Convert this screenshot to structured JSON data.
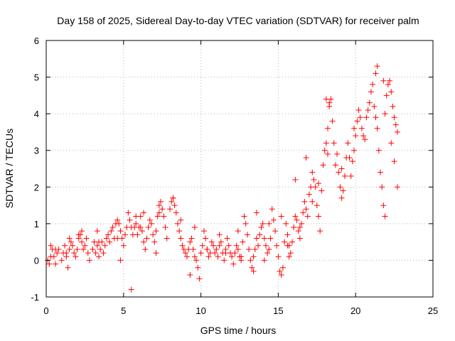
{
  "chart_data": {
    "type": "scatter",
    "title": "Day 158 of 2025, Sidereal Day-to-day VTEC variation (SDTVAR) for receiver palm",
    "xlabel": "GPS time / hours",
    "ylabel": "SDTVAR / TECUs",
    "xlim": [
      0,
      25
    ],
    "ylim": [
      -1,
      6
    ],
    "x_ticks": [
      0,
      5,
      10,
      15,
      20,
      25
    ],
    "y_ticks": [
      -1,
      0,
      1,
      2,
      3,
      4,
      5,
      6
    ],
    "grid": true,
    "marker": "+",
    "series": [
      {
        "name": "SDTVAR",
        "color": "#ff0000",
        "x": [
          0.1,
          0.2,
          0.3,
          0.4,
          0.5,
          0.6,
          0.7,
          0.8,
          1.0,
          1.1,
          1.2,
          1.3,
          1.4,
          1.5,
          1.6,
          1.7,
          1.8,
          1.9,
          2.0,
          2.1,
          2.2,
          2.3,
          2.4,
          2.5,
          2.6,
          2.7,
          2.8,
          3.0,
          3.1,
          3.2,
          3.3,
          3.4,
          3.5,
          3.6,
          3.7,
          3.8,
          3.9,
          4.0,
          4.1,
          4.2,
          4.3,
          4.4,
          4.5,
          4.6,
          4.7,
          4.8,
          4.9,
          5.0,
          5.1,
          5.2,
          5.3,
          5.4,
          5.5,
          5.6,
          5.7,
          5.8,
          5.9,
          6.0,
          6.1,
          6.2,
          6.3,
          6.4,
          6.5,
          6.6,
          6.7,
          6.8,
          6.9,
          7.0,
          7.1,
          7.2,
          7.3,
          7.4,
          7.5,
          7.6,
          7.7,
          7.8,
          8.0,
          8.1,
          8.2,
          8.3,
          8.4,
          8.5,
          8.6,
          8.7,
          8.8,
          8.9,
          9.0,
          9.1,
          9.2,
          9.3,
          9.4,
          9.5,
          9.6,
          9.7,
          9.8,
          9.9,
          10.0,
          10.1,
          10.2,
          10.3,
          10.4,
          10.5,
          10.6,
          10.7,
          10.8,
          10.9,
          11.0,
          11.1,
          11.2,
          11.3,
          11.4,
          11.5,
          11.6,
          11.7,
          11.8,
          11.9,
          12.0,
          12.1,
          12.2,
          12.3,
          12.4,
          12.5,
          12.6,
          12.7,
          12.8,
          12.9,
          13.0,
          13.1,
          13.2,
          13.3,
          13.4,
          13.5,
          13.6,
          13.7,
          13.8,
          13.9,
          14.0,
          14.1,
          14.2,
          14.3,
          14.4,
          14.5,
          14.6,
          14.7,
          14.8,
          14.9,
          15.0,
          15.1,
          15.2,
          15.3,
          15.4,
          15.5,
          15.6,
          15.7,
          15.8,
          15.9,
          16.0,
          16.1,
          16.2,
          16.3,
          16.4,
          16.5,
          16.6,
          16.7,
          16.8,
          16.9,
          17.0,
          17.1,
          17.2,
          17.3,
          17.4,
          17.5,
          17.6,
          17.7,
          17.8,
          17.9,
          18.0,
          18.1,
          18.2,
          18.3,
          18.4,
          18.5,
          18.6,
          18.7,
          18.8,
          18.9,
          19.0,
          19.1,
          19.2,
          19.3,
          19.4,
          19.5,
          19.6,
          19.7,
          19.8,
          19.9,
          20.0,
          20.1,
          20.2,
          20.3,
          20.4,
          20.5,
          20.6,
          20.7,
          20.8,
          20.9,
          21.0,
          21.1,
          21.2,
          21.3,
          21.4,
          21.5,
          21.6,
          21.7,
          21.8,
          21.9,
          22.0,
          22.1,
          22.2,
          22.3,
          22.4,
          22.5,
          22.6,
          22.7,
          5.5,
          0.3,
          0.6,
          1.5,
          2.3,
          3.4,
          4.6,
          6.3,
          7.1,
          8.7,
          9.6,
          10.4,
          11.6,
          12.4,
          13.6,
          14.4,
          15.2,
          15.6,
          16.4,
          17.2,
          18.2,
          19.1,
          19.9,
          21.4,
          21.9,
          22.5,
          22.7,
          21.3,
          21.8,
          22.3,
          18.1,
          18.3,
          17.6,
          16.8,
          16.1,
          15.7,
          14.1,
          13.4,
          12.6,
          11.2,
          9.3,
          8.2,
          7.3,
          6.1,
          5.8,
          4.8,
          3.3,
          2.1,
          1.3
        ],
        "y": [
          0.0,
          -0.1,
          0.1,
          0.3,
          0.1,
          -0.1,
          0.2,
          0.3,
          0.0,
          0.2,
          0.4,
          0.1,
          -0.2,
          0.3,
          0.5,
          0.4,
          0.2,
          0.1,
          0.3,
          0.6,
          0.7,
          0.5,
          0.3,
          0.4,
          0.6,
          0.2,
          0.0,
          0.3,
          0.5,
          0.2,
          0.4,
          0.1,
          0.3,
          0.5,
          0.2,
          0.4,
          0.6,
          0.7,
          0.5,
          0.8,
          0.9,
          0.6,
          1.0,
          1.1,
          1.0,
          0.8,
          0.6,
          0.4,
          0.7,
          0.9,
          1.3,
          1.1,
          0.9,
          0.7,
          0.9,
          1.0,
          0.7,
          0.9,
          1.2,
          0.8,
          0.5,
          0.3,
          0.6,
          0.9,
          1.1,
          1.0,
          0.7,
          0.5,
          0.8,
          1.2,
          1.5,
          1.6,
          1.4,
          1.2,
          0.9,
          0.6,
          1.4,
          1.6,
          1.7,
          1.5,
          1.3,
          1.0,
          0.8,
          0.6,
          0.4,
          0.3,
          0.2,
          0.1,
          0.3,
          0.5,
          0.6,
          0.3,
          0.1,
          0.0,
          -0.2,
          -0.5,
          0.2,
          0.4,
          0.8,
          0.6,
          0.3,
          0.1,
          0.2,
          0.5,
          0.4,
          0.2,
          0.3,
          0.1,
          0.4,
          0.5,
          0.2,
          0.0,
          0.3,
          0.6,
          0.4,
          0.2,
          0.1,
          -0.1,
          0.2,
          0.4,
          0.3,
          0.1,
          0.0,
          0.5,
          1.2,
          1.0,
          0.7,
          0.3,
          0.0,
          -0.2,
          0.1,
          0.3,
          0.6,
          0.4,
          0.7,
          0.9,
          1.0,
          0.6,
          0.4,
          0.2,
          0.3,
          0.6,
          1.4,
          1.1,
          0.8,
          0.4,
          0.1,
          -0.3,
          -0.4,
          -0.2,
          0.5,
          1.0,
          0.7,
          0.4,
          0.2,
          0.5,
          0.9,
          1.2,
          1.1,
          0.8,
          0.6,
          1.0,
          1.3,
          1.6,
          1.4,
          1.2,
          1.8,
          2.0,
          1.6,
          2.2,
          2.0,
          1.5,
          1.2,
          0.8,
          1.9,
          2.6,
          3.0,
          3.2,
          3.6,
          4.2,
          4.4,
          3.8,
          3.2,
          2.6,
          2.9,
          2.4,
          2.0,
          1.7,
          1.9,
          2.3,
          2.8,
          3.2,
          2.8,
          2.3,
          2.7,
          3.0,
          3.4,
          3.8,
          4.1,
          3.9,
          3.6,
          3.4,
          3.3,
          3.9,
          4.1,
          4.3,
          4.6,
          4.8,
          4.2,
          3.9,
          3.6,
          3.0,
          2.4,
          2.0,
          1.5,
          4.0,
          4.5,
          4.8,
          4.9,
          4.6,
          4.2,
          3.9,
          3.7,
          3.5,
          -0.8,
          0.4,
          0.3,
          0.6,
          0.8,
          0.5,
          0.6,
          1.3,
          0.2,
          1.1,
          0.9,
          0.3,
          0.2,
          0.8,
          1.3,
          1.0,
          1.2,
          0.4,
          0.9,
          2.4,
          2.9,
          2.5,
          3.6,
          5.3,
          1.2,
          2.7,
          2.0,
          5.1,
          4.9,
          3.2,
          4.4,
          4.3,
          2.1,
          2.8,
          2.2,
          0.1,
          0.0,
          -0.3,
          0.1,
          0.7,
          -0.4,
          1.7,
          1.3,
          0.9,
          1.2,
          0.0,
          0.8,
          0.7,
          0.2
        ]
      }
    ]
  }
}
